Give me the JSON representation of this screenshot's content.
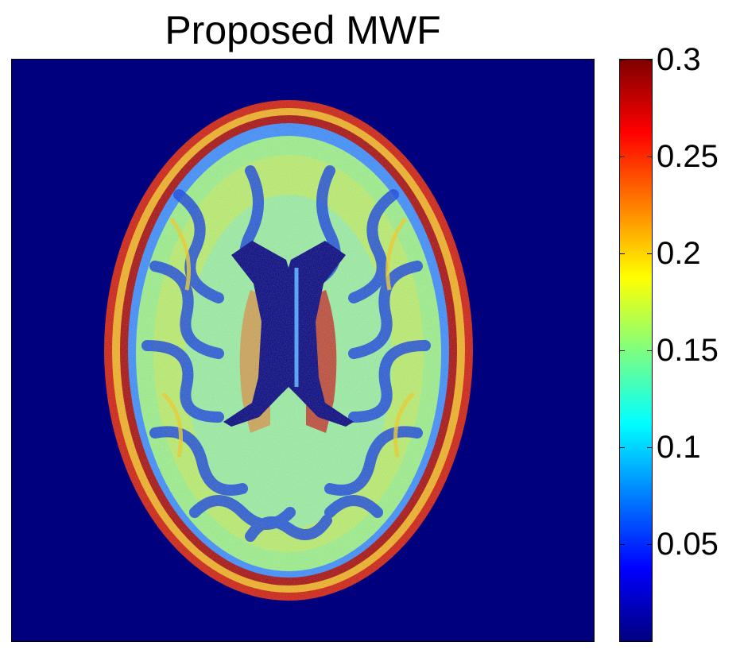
{
  "figure": {
    "title": "Proposed MWF",
    "image": "axial brain myelin water fraction map",
    "colormap": "jet",
    "background_color": "#00007f"
  },
  "colorbar": {
    "min": 0,
    "max": 0.3,
    "ticks": [
      {
        "value": 0.3,
        "label": "0.3"
      },
      {
        "value": 0.25,
        "label": "0.25"
      },
      {
        "value": 0.2,
        "label": "0.2"
      },
      {
        "value": 0.15,
        "label": "0.15"
      },
      {
        "value": 0.1,
        "label": "0.1"
      },
      {
        "value": 0.05,
        "label": "0.05"
      }
    ],
    "stops": [
      "#00007f",
      "#0000ff",
      "#007fff",
      "#00ffff",
      "#7fff7f",
      "#ffff00",
      "#ff7f00",
      "#ff0000",
      "#7f0000"
    ]
  }
}
